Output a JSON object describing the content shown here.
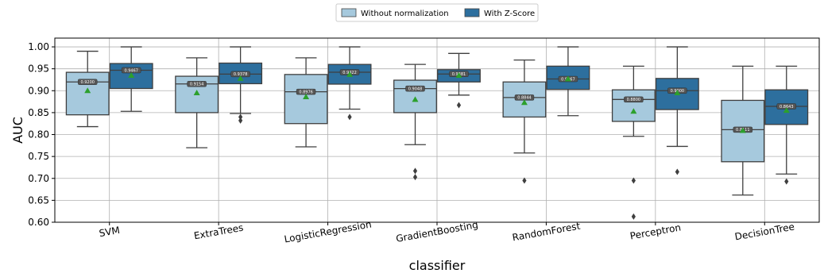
{
  "chart_data": {
    "type": "box",
    "xlabel": "classifier",
    "ylabel": "AUC",
    "ylim": [
      0.6,
      1.02
    ],
    "yticks": [
      "0.60",
      "0.65",
      "0.70",
      "0.75",
      "0.80",
      "0.85",
      "0.90",
      "0.95",
      "1.00"
    ],
    "grid": true,
    "legend_position": "top-center",
    "series": [
      {
        "name": "Without normalization",
        "color": "#a6c9dd"
      },
      {
        "name": "With Z-Score",
        "color": "#2d6f9e"
      }
    ],
    "categories": [
      "SVM",
      "ExtraTrees",
      "LogisticRegression",
      "GradientBoosting",
      "RandomForest",
      "Perceptron",
      "DecisionTree"
    ],
    "boxes": [
      [
        {
          "whislo": 0.818,
          "q1": 0.845,
          "med": 0.92,
          "q3": 0.942,
          "whishi": 0.99,
          "mean": 0.9,
          "fliers": [],
          "median_label": "0.9200"
        },
        {
          "whislo": 0.853,
          "q1": 0.905,
          "med": 0.9467,
          "q3": 0.962,
          "whishi": 1.0,
          "mean": 0.935,
          "fliers": [],
          "median_label": "0.9467"
        }
      ],
      [
        {
          "whislo": 0.77,
          "q1": 0.85,
          "med": 0.9154,
          "q3": 0.933,
          "whishi": 0.975,
          "mean": 0.895,
          "fliers": [],
          "median_label": "0.9154"
        },
        {
          "whislo": 0.848,
          "q1": 0.916,
          "med": 0.9378,
          "q3": 0.963,
          "whishi": 1.0,
          "mean": 0.928,
          "fliers": [
            0.84,
            0.832
          ],
          "median_label": "0.9378"
        }
      ],
      [
        {
          "whislo": 0.772,
          "q1": 0.825,
          "med": 0.8976,
          "q3": 0.937,
          "whishi": 0.975,
          "mean": 0.886,
          "fliers": [],
          "median_label": "0.8976"
        },
        {
          "whislo": 0.858,
          "q1": 0.915,
          "med": 0.9422,
          "q3": 0.96,
          "whishi": 1.0,
          "mean": 0.937,
          "fliers": [
            0.84
          ],
          "median_label": "0.9422"
        }
      ],
      [
        {
          "whislo": 0.777,
          "q1": 0.85,
          "med": 0.9048,
          "q3": 0.924,
          "whishi": 0.96,
          "mean": 0.88,
          "fliers": [
            0.717,
            0.703
          ],
          "median_label": "0.9048"
        },
        {
          "whislo": 0.89,
          "q1": 0.92,
          "med": 0.9381,
          "q3": 0.948,
          "whishi": 0.985,
          "mean": 0.935,
          "fliers": [
            0.867
          ],
          "median_label": "0.9381"
        }
      ],
      [
        {
          "whislo": 0.758,
          "q1": 0.84,
          "med": 0.8844,
          "q3": 0.92,
          "whishi": 0.97,
          "mean": 0.873,
          "fliers": [
            0.695
          ],
          "median_label": "0.8844"
        },
        {
          "whislo": 0.843,
          "q1": 0.903,
          "med": 0.9267,
          "q3": 0.956,
          "whishi": 1.0,
          "mean": 0.927,
          "fliers": [],
          "median_label": "0.9267"
        }
      ],
      [
        {
          "whislo": 0.796,
          "q1": 0.83,
          "med": 0.88,
          "q3": 0.902,
          "whishi": 0.956,
          "mean": 0.853,
          "fliers": [
            0.695,
            0.613
          ],
          "median_label": "0.8800"
        },
        {
          "whislo": 0.773,
          "q1": 0.857,
          "med": 0.9,
          "q3": 0.928,
          "whishi": 1.0,
          "mean": 0.895,
          "fliers": [
            0.715
          ],
          "median_label": "0.9000"
        }
      ],
      [
        {
          "whislo": 0.662,
          "q1": 0.738,
          "med": 0.8111,
          "q3": 0.878,
          "whishi": 0.956,
          "mean": 0.809,
          "fliers": [],
          "median_label": "0.8111"
        },
        {
          "whislo": 0.71,
          "q1": 0.823,
          "med": 0.8643,
          "q3": 0.902,
          "whishi": 0.956,
          "mean": 0.855,
          "fliers": [
            0.693
          ],
          "median_label": "0.8643"
        }
      ]
    ],
    "mean_marker_color": "#2ca02c"
  }
}
